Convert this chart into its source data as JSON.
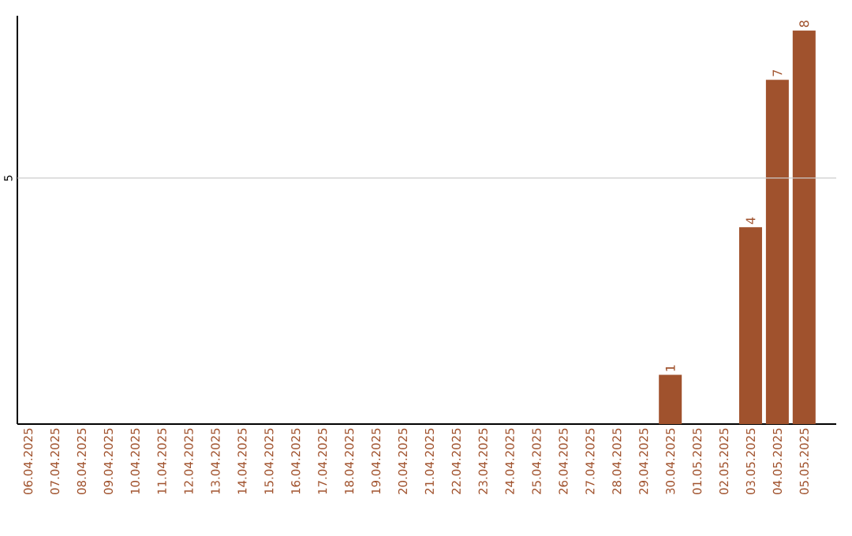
{
  "chart_data": {
    "type": "bar",
    "categories": [
      "06.04.2025",
      "07.04.2025",
      "08.04.2025",
      "09.04.2025",
      "10.04.2025",
      "11.04.2025",
      "12.04.2025",
      "13.04.2025",
      "14.04.2025",
      "15.04.2025",
      "16.04.2025",
      "17.04.2025",
      "18.04.2025",
      "19.04.2025",
      "20.04.2025",
      "21.04.2025",
      "22.04.2025",
      "23.04.2025",
      "24.04.2025",
      "25.04.2025",
      "26.04.2025",
      "27.04.2025",
      "28.04.2025",
      "29.04.2025",
      "30.04.2025",
      "01.05.2025",
      "02.05.2025",
      "03.05.2025",
      "04.05.2025",
      "05.05.2025"
    ],
    "values": [
      null,
      null,
      null,
      null,
      null,
      null,
      null,
      null,
      null,
      null,
      null,
      null,
      null,
      null,
      null,
      null,
      null,
      null,
      null,
      null,
      null,
      null,
      null,
      null,
      1,
      null,
      null,
      4,
      7,
      8
    ],
    "value_labels": [
      null,
      null,
      null,
      null,
      null,
      null,
      null,
      null,
      null,
      null,
      null,
      null,
      null,
      null,
      null,
      null,
      null,
      null,
      null,
      null,
      null,
      null,
      null,
      null,
      "1",
      null,
      null,
      "4",
      "7",
      "8"
    ],
    "color": "#a0522d",
    "ylim": [
      0,
      8.3
    ],
    "ref_lines": [
      {
        "axis": "y",
        "value": 5,
        "label": "5",
        "color": "#cccccc"
      }
    ]
  }
}
